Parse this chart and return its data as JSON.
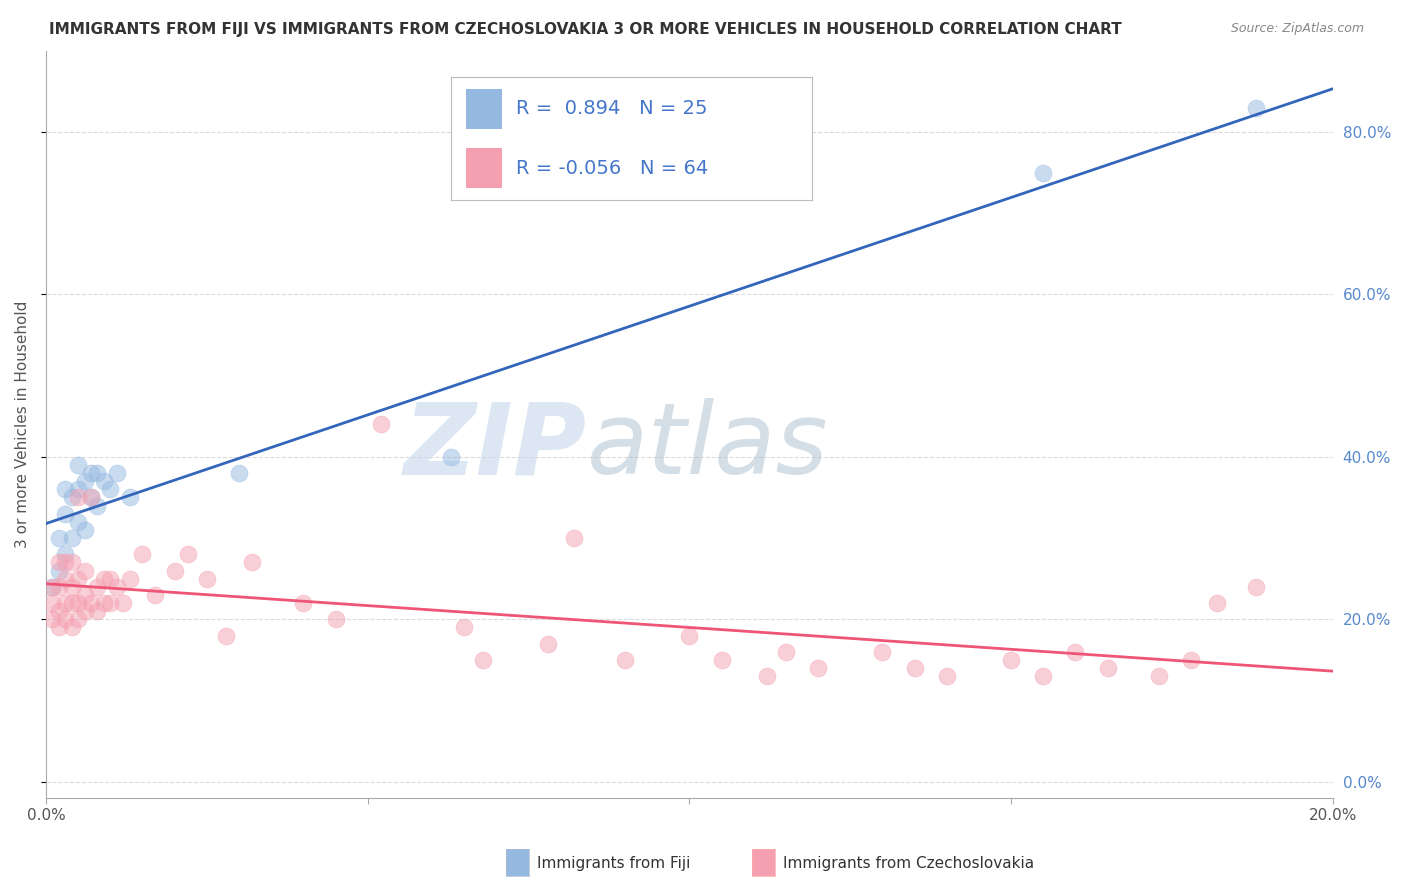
{
  "title": "IMMIGRANTS FROM FIJI VS IMMIGRANTS FROM CZECHOSLOVAKIA 3 OR MORE VEHICLES IN HOUSEHOLD CORRELATION CHART",
  "source": "Source: ZipAtlas.com",
  "ylabel": "3 or more Vehicles in Household",
  "legend_label1": "Immigrants from Fiji",
  "legend_label2": "Immigrants from Czechoslovakia",
  "R1": 0.894,
  "N1": 25,
  "R2": -0.056,
  "N2": 64,
  "xlim": [
    0.0,
    0.2
  ],
  "ylim": [
    -0.02,
    0.9
  ],
  "right_yticks": [
    0.0,
    0.2,
    0.4,
    0.6,
    0.8
  ],
  "right_yticklabels": [
    "0.0%",
    "20.0%",
    "40.0%",
    "60.0%",
    "80.0%"
  ],
  "xticks": [
    0.0,
    0.05,
    0.1,
    0.15,
    0.2
  ],
  "xticklabels": [
    "0.0%",
    "",
    "",
    "",
    "20.0%"
  ],
  "color_fiji": "#94B8E0",
  "color_czech": "#F4A0B0",
  "line_fiji": "#3366BB",
  "line_czech": "#EE5577",
  "watermark_zip": "ZIP",
  "watermark_atlas": "atlas",
  "watermark_color_zip": "#C8D8E8",
  "watermark_color_atlas": "#C0CCD8",
  "background_color": "#FFFFFF",
  "grid_color": "#CCCCCC",
  "fiji_x": [
    0.001,
    0.002,
    0.002,
    0.003,
    0.003,
    0.003,
    0.004,
    0.004,
    0.005,
    0.005,
    0.005,
    0.006,
    0.006,
    0.007,
    0.007,
    0.008,
    0.008,
    0.009,
    0.01,
    0.011,
    0.013,
    0.03,
    0.063,
    0.155,
    0.188
  ],
  "fiji_y": [
    0.24,
    0.26,
    0.3,
    0.28,
    0.33,
    0.36,
    0.3,
    0.35,
    0.32,
    0.36,
    0.39,
    0.31,
    0.37,
    0.35,
    0.38,
    0.34,
    0.38,
    0.37,
    0.36,
    0.38,
    0.35,
    0.38,
    0.4,
    0.75,
    0.83
  ],
  "czech_x": [
    0.001,
    0.001,
    0.001,
    0.002,
    0.002,
    0.002,
    0.002,
    0.003,
    0.003,
    0.003,
    0.003,
    0.004,
    0.004,
    0.004,
    0.004,
    0.005,
    0.005,
    0.005,
    0.005,
    0.006,
    0.006,
    0.006,
    0.007,
    0.007,
    0.008,
    0.008,
    0.009,
    0.009,
    0.01,
    0.01,
    0.011,
    0.012,
    0.013,
    0.015,
    0.017,
    0.02,
    0.022,
    0.025,
    0.028,
    0.032,
    0.04,
    0.045,
    0.052,
    0.065,
    0.068,
    0.078,
    0.082,
    0.09,
    0.1,
    0.105,
    0.112,
    0.115,
    0.12,
    0.13,
    0.135,
    0.14,
    0.15,
    0.155,
    0.16,
    0.165,
    0.173,
    0.178,
    0.182,
    0.188
  ],
  "czech_y": [
    0.2,
    0.22,
    0.24,
    0.19,
    0.21,
    0.24,
    0.27,
    0.2,
    0.22,
    0.25,
    0.27,
    0.19,
    0.22,
    0.24,
    0.27,
    0.2,
    0.22,
    0.25,
    0.35,
    0.21,
    0.23,
    0.26,
    0.22,
    0.35,
    0.21,
    0.24,
    0.22,
    0.25,
    0.22,
    0.25,
    0.24,
    0.22,
    0.25,
    0.28,
    0.23,
    0.26,
    0.28,
    0.25,
    0.18,
    0.27,
    0.22,
    0.2,
    0.44,
    0.19,
    0.15,
    0.17,
    0.3,
    0.15,
    0.18,
    0.15,
    0.13,
    0.16,
    0.14,
    0.16,
    0.14,
    0.13,
    0.15,
    0.13,
    0.16,
    0.14,
    0.13,
    0.15,
    0.22,
    0.24
  ]
}
